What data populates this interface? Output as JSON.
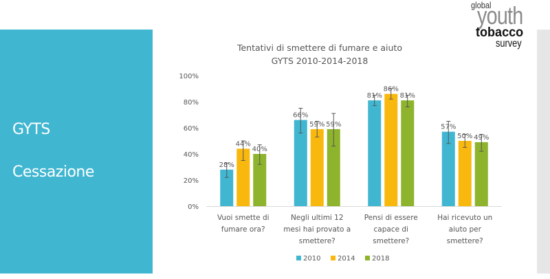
{
  "slide": {
    "side_title_1": "GYTS",
    "side_title_2": "Cessazione",
    "accent_color": "#41b6d1",
    "logo": {
      "line1": "global",
      "line2": "youth",
      "line3": "tobacco",
      "line4": "survey"
    }
  },
  "chart_data": {
    "type": "bar",
    "title": "Tentativi di smettere di fumare e aiuto",
    "subtitle": "GYTS 2010-2014-2018",
    "xlabel": "",
    "ylabel": "",
    "ylim": [
      0,
      100
    ],
    "yticks": [
      0,
      20,
      40,
      60,
      80,
      100
    ],
    "ytick_labels": [
      "0%",
      "20%",
      "40%",
      "60%",
      "80%",
      "100%"
    ],
    "grid": false,
    "legend_position": "bottom",
    "categories": [
      [
        "Vuoi smette di",
        "fumare ora?"
      ],
      [
        "Negli ultimi 12",
        "mesi hai provato a",
        "smettere?"
      ],
      [
        "Pensi di essere",
        "capace di",
        "smettere?"
      ],
      [
        "Hai ricevuto un",
        "aiuto per",
        "smettere?"
      ]
    ],
    "series": [
      {
        "name": "2010",
        "color": "#41b6d1",
        "values": [
          28,
          66,
          81,
          57
        ],
        "labels": [
          "28%",
          "66%",
          "81%",
          "57%"
        ],
        "error_low": [
          22,
          56,
          77,
          48
        ],
        "error_high": [
          33,
          75,
          85,
          65
        ]
      },
      {
        "name": "2014",
        "color": "#f9b80e",
        "values": [
          44,
          59,
          86,
          50
        ],
        "labels": [
          "44%",
          "59%",
          "86%",
          "50%"
        ],
        "error_low": [
          35,
          53,
          82,
          45
        ],
        "error_high": [
          50,
          65,
          90,
          55
        ]
      },
      {
        "name": "2018",
        "color": "#8db42c",
        "values": [
          40,
          59,
          81,
          49
        ],
        "labels": [
          "40%",
          "59%",
          "81%",
          "49%"
        ],
        "error_low": [
          32,
          46,
          76,
          42
        ],
        "error_high": [
          47,
          71,
          85,
          55
        ]
      }
    ]
  }
}
